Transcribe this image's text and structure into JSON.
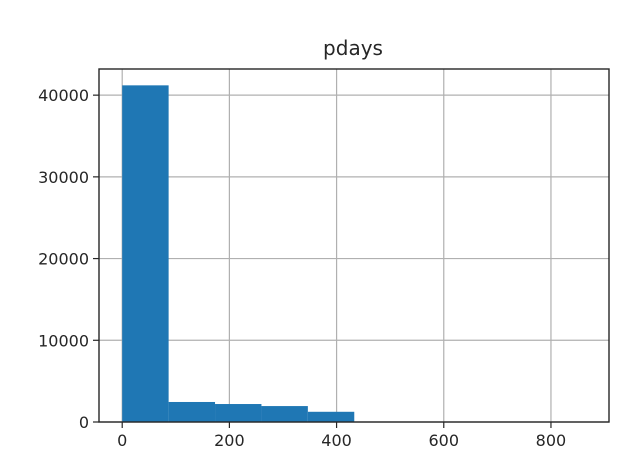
{
  "chart_data": {
    "type": "bar",
    "title": "pdays",
    "xlabel": "",
    "ylabel": "",
    "xlim": [
      -43.3,
      908.3
    ],
    "ylim": [
      0,
      43200
    ],
    "grid": true,
    "bar_color": "#1f77b4",
    "bins": [
      {
        "x0": 0,
        "x1": 86.6,
        "count": 41200
      },
      {
        "x0": 86.6,
        "x1": 173.2,
        "count": 2450
      },
      {
        "x0": 173.2,
        "x1": 259.8,
        "count": 2200
      },
      {
        "x0": 259.8,
        "x1": 346.4,
        "count": 1950
      },
      {
        "x0": 346.4,
        "x1": 433.0,
        "count": 1250
      },
      {
        "x0": 433.0,
        "x1": 519.6,
        "count": 0
      },
      {
        "x0": 519.6,
        "x1": 606.2,
        "count": 0
      },
      {
        "x0": 606.2,
        "x1": 692.8,
        "count": 0
      },
      {
        "x0": 692.8,
        "x1": 779.4,
        "count": 0
      },
      {
        "x0": 779.4,
        "x1": 866.0,
        "count": 0
      }
    ],
    "x_ticks": [
      {
        "value": 0,
        "label": "0"
      },
      {
        "value": 200,
        "label": "200"
      },
      {
        "value": 400,
        "label": "400"
      },
      {
        "value": 600,
        "label": "600"
      },
      {
        "value": 800,
        "label": "800"
      }
    ],
    "y_ticks": [
      {
        "value": 0,
        "label": "0"
      },
      {
        "value": 10000,
        "label": "10000"
      },
      {
        "value": 20000,
        "label": "20000"
      },
      {
        "value": 30000,
        "label": "30000"
      },
      {
        "value": 40000,
        "label": "40000"
      }
    ]
  }
}
